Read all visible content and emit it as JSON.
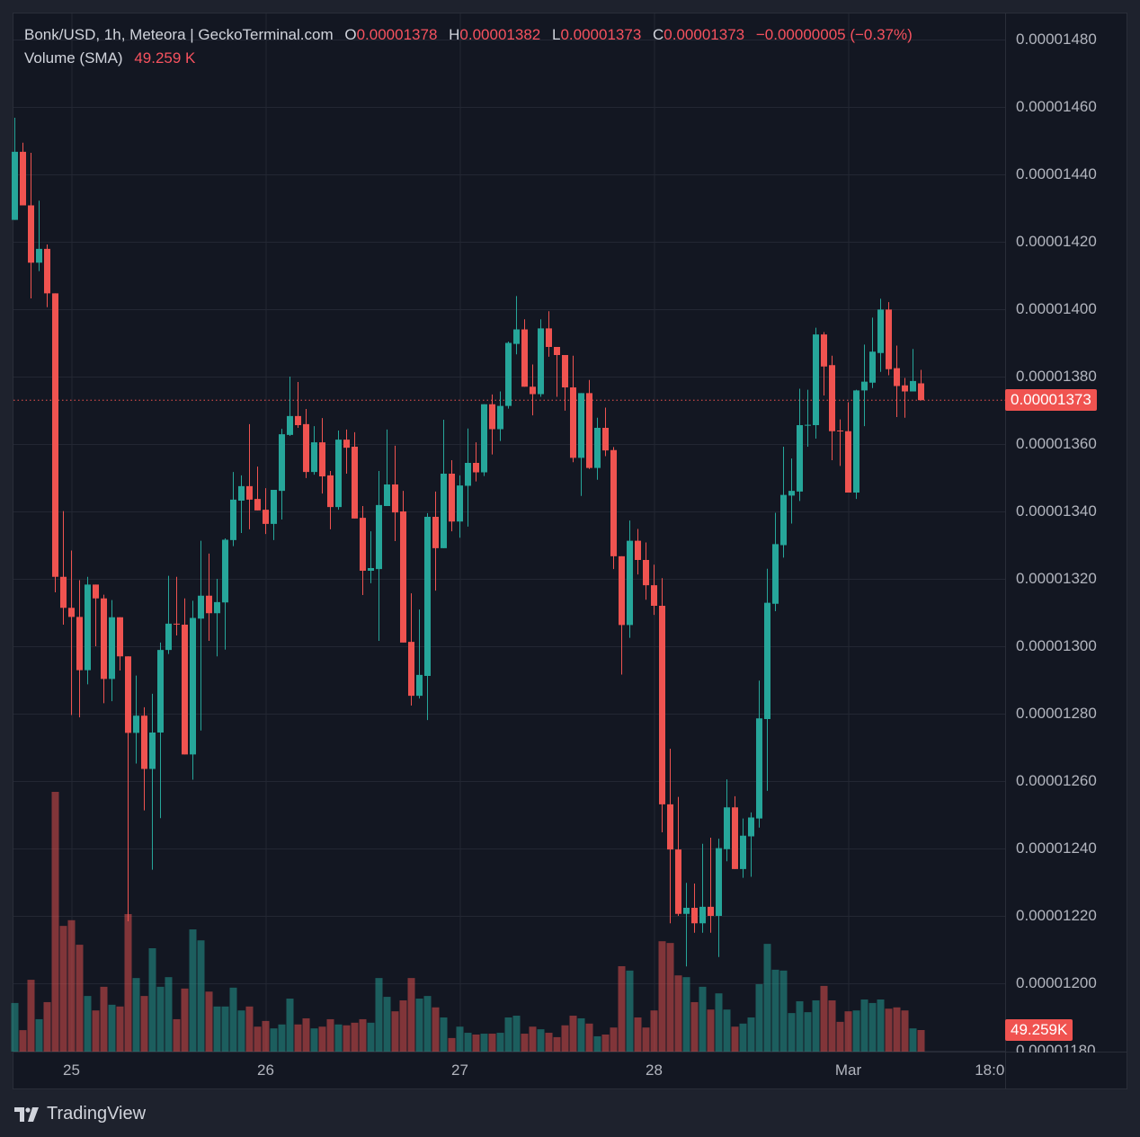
{
  "header": {
    "symbol_line": "Bonk/USD, 1h, Meteora | GeckoTerminal.com",
    "open_label": "O",
    "open_value": "0.00001378",
    "high_label": "H",
    "high_value": "0.00001382",
    "low_label": "L",
    "low_value": "0.00001373",
    "close_label": "C",
    "close_value": "0.00001373",
    "change": "−0.00000005 (−0.37%)",
    "volume_label": "Volume (SMA)",
    "volume_value": "49.259 K"
  },
  "last_price_label": "0.00001373",
  "last_volume_label": "49.259K",
  "branding": "TradingView",
  "colors": {
    "up": "#26a69a",
    "down": "#ef5350",
    "background": "#131722",
    "frame": "#1e222d",
    "grid": "#232733",
    "text": "#b2b5be"
  },
  "chart_data": {
    "type": "candlestick",
    "interval": "1h",
    "grid": true,
    "x_tick_labels": [
      "25",
      "26",
      "27",
      "28",
      "Mar",
      "18:00"
    ],
    "y_tick_labels": [
      "0.00001480",
      "0.00001460",
      "0.00001440",
      "0.00001420",
      "0.00001400",
      "0.00001380",
      "0.00001360",
      "0.00001340",
      "0.00001320",
      "0.00001300",
      "0.00001280",
      "0.00001260",
      "0.00001240",
      "0.00001220",
      "0.00001200",
      "0.00001180"
    ],
    "ylim": [
      1.18e-05,
      1.48e-05
    ],
    "last_price": 1.373e-05,
    "ohlc": [
      [
        1.4265e-05,
        1.4568e-05,
        1.4265e-05,
        1.4467e-05
      ],
      [
        1.4467e-05,
        1.4494e-05,
        1.4308e-05,
        1.4308e-05
      ],
      [
        1.4308e-05,
        1.4464e-05,
        1.4032e-05,
        1.4138e-05
      ],
      [
        1.4138e-05,
        1.4322e-05,
        1.4113e-05,
        1.4179e-05
      ],
      [
        1.4179e-05,
        1.4192e-05,
        1.4006e-05,
        1.4047e-05
      ],
      [
        1.4047e-05,
        1.4047e-05,
        1.316e-05,
        1.3206e-05
      ],
      [
        1.3206e-05,
        1.3401e-05,
        1.3064e-05,
        1.3114e-05
      ],
      [
        1.3114e-05,
        1.3284e-05,
        1.2796e-05,
        1.3087e-05
      ],
      [
        1.3087e-05,
        1.3196e-05,
        1.2789e-05,
        1.2929e-05
      ],
      [
        1.2929e-05,
        1.3206e-05,
        1.2887e-05,
        1.3183e-05
      ],
      [
        1.3183e-05,
        1.3183e-05,
        1.3e-05,
        1.3142e-05
      ],
      [
        1.3142e-05,
        1.3153e-05,
        1.2831e-05,
        1.2903e-05
      ],
      [
        1.2903e-05,
        1.3137e-05,
        1.2837e-05,
        1.3086e-05
      ],
      [
        1.3086e-05,
        1.3086e-05,
        1.2928e-05,
        1.297e-05
      ],
      [
        1.297e-05,
        1.297e-05,
        1.2184e-05,
        1.2743e-05
      ],
      [
        1.2743e-05,
        1.2913e-05,
        1.2652e-05,
        1.2794e-05
      ],
      [
        1.2794e-05,
        1.2819e-05,
        1.2513e-05,
        1.2636e-05
      ],
      [
        1.2636e-05,
        1.2859e-05,
        1.2337e-05,
        1.2744e-05
      ],
      [
        1.2744e-05,
        1.3011e-05,
        1.249e-05,
        1.2989e-05
      ],
      [
        1.2989e-05,
        1.3209e-05,
        1.2977e-05,
        1.3067e-05
      ],
      [
        1.3067e-05,
        1.3206e-05,
        1.3032e-05,
        1.3066e-05
      ],
      [
        1.3064e-05,
        1.3142e-05,
        1.2679e-05,
        1.2679e-05
      ],
      [
        1.2679e-05,
        1.3135e-05,
        1.2604e-05,
        1.3084e-05
      ],
      [
        1.3082e-05,
        1.3313e-05,
        1.275e-05,
        1.315e-05
      ],
      [
        1.315e-05,
        1.3275e-05,
        1.3016e-05,
        1.3098e-05
      ],
      [
        1.3098e-05,
        1.32e-05,
        1.297e-05,
        1.3131e-05
      ],
      [
        1.313e-05,
        1.332e-05,
        1.299e-05,
        1.3316e-05
      ],
      [
        1.3315e-05,
        1.3517e-05,
        1.3297e-05,
        1.3435e-05
      ],
      [
        1.3432e-05,
        1.3507e-05,
        1.3336e-05,
        1.3475e-05
      ],
      [
        1.3475e-05,
        1.3659e-05,
        1.3347e-05,
        1.3435e-05
      ],
      [
        1.3437e-05,
        1.3533e-05,
        1.3403e-05,
        1.3403e-05
      ],
      [
        1.3405e-05,
        1.3469e-05,
        1.3333e-05,
        1.3363e-05
      ],
      [
        1.3363e-05,
        1.3464e-05,
        1.3315e-05,
        1.3464e-05
      ],
      [
        1.3461e-05,
        1.3645e-05,
        1.3376e-05,
        1.3629e-05
      ],
      [
        1.3627e-05,
        1.38e-05,
        1.3624e-05,
        1.3683e-05
      ],
      [
        1.3683e-05,
        1.3784e-05,
        1.3648e-05,
        1.3656e-05
      ],
      [
        1.3659e-05,
        1.3704e-05,
        1.3499e-05,
        1.3517e-05
      ],
      [
        1.3517e-05,
        1.3653e-05,
        1.3509e-05,
        1.3605e-05
      ],
      [
        1.3605e-05,
        1.3677e-05,
        1.3453e-05,
        1.3504e-05
      ],
      [
        1.3507e-05,
        1.352e-05,
        1.3347e-05,
        1.3413e-05
      ],
      [
        1.3413e-05,
        1.364e-05,
        1.3405e-05,
        1.3613e-05
      ],
      [
        1.3613e-05,
        1.3643e-05,
        1.3512e-05,
        1.3589e-05
      ],
      [
        1.3592e-05,
        1.3635e-05,
        1.3379e-05,
        1.3379e-05
      ],
      [
        1.3381e-05,
        1.3416e-05,
        1.3152e-05,
        1.3224e-05
      ],
      [
        1.3224e-05,
        1.3341e-05,
        1.3187e-05,
        1.3232e-05
      ],
      [
        1.3229e-05,
        1.352e-05,
        1.3016e-05,
        1.3419e-05
      ],
      [
        1.3416e-05,
        1.3643e-05,
        1.3416e-05,
        1.348e-05
      ],
      [
        1.348e-05,
        1.3595e-05,
        1.3312e-05,
        1.3397e-05
      ],
      [
        1.34e-05,
        1.3461e-05,
        1.3011e-05,
        1.3011e-05
      ],
      [
        1.3013e-05,
        1.3157e-05,
        1.2824e-05,
        1.2853e-05
      ],
      [
        1.2853e-05,
        1.3109e-05,
        1.2845e-05,
        1.2915e-05
      ],
      [
        1.2912e-05,
        1.3395e-05,
        1.2781e-05,
        1.3384e-05
      ],
      [
        1.3384e-05,
        1.3459e-05,
        1.3165e-05,
        1.3291e-05
      ],
      [
        1.3291e-05,
        1.3672e-05,
        1.3291e-05,
        1.3512e-05
      ],
      [
        1.3512e-05,
        1.3552e-05,
        1.3341e-05,
        1.337e-05
      ],
      [
        1.337e-05,
        1.3507e-05,
        1.3322e-05,
        1.3477e-05
      ],
      [
        1.3476e-05,
        1.3646e-05,
        1.3355e-05,
        1.3544e-05
      ],
      [
        1.3544e-05,
        1.3605e-05,
        1.3489e-05,
        1.3516e-05
      ],
      [
        1.3516e-05,
        1.3718e-05,
        1.3505e-05,
        1.3718e-05
      ],
      [
        1.3718e-05,
        1.3747e-05,
        1.3569e-05,
        1.3644e-05
      ],
      [
        1.3644e-05,
        1.3756e-05,
        1.3609e-05,
        1.3713e-05
      ],
      [
        1.3713e-05,
        1.3904e-05,
        1.3705e-05,
        1.39e-05
      ],
      [
        1.3897e-05,
        1.4039e-05,
        1.3866e-05,
        1.394e-05
      ],
      [
        1.394e-05,
        1.397e-05,
        1.377e-05,
        1.377e-05
      ],
      [
        1.377e-05,
        1.3836e-05,
        1.3685e-05,
        1.3748e-05
      ],
      [
        1.3748e-05,
        1.397e-05,
        1.374e-05,
        1.3943e-05
      ],
      [
        1.3943e-05,
        1.3994e-05,
        1.3859e-05,
        1.3888e-05
      ],
      [
        1.3888e-05,
        1.3888e-05,
        1.374e-05,
        1.3864e-05
      ],
      [
        1.3864e-05,
        1.3864e-05,
        1.3699e-05,
        1.3768e-05
      ],
      [
        1.3768e-05,
        1.3862e-05,
        1.3546e-05,
        1.3559e-05
      ],
      [
        1.3559e-05,
        1.3751e-05,
        1.3446e-05,
        1.3751e-05
      ],
      [
        1.3751e-05,
        1.379e-05,
        1.3526e-05,
        1.3529e-05
      ],
      [
        1.3529e-05,
        1.3678e-05,
        1.3494e-05,
        1.3648e-05
      ],
      [
        1.3648e-05,
        1.3708e-05,
        1.3564e-05,
        1.3581e-05
      ],
      [
        1.3582e-05,
        1.3591e-05,
        1.3229e-05,
        1.3267e-05
      ],
      [
        1.3267e-05,
        1.3267e-05,
        1.2916e-05,
        1.3063e-05
      ],
      [
        1.3063e-05,
        1.3373e-05,
        1.3025e-05,
        1.3313e-05
      ],
      [
        1.3313e-05,
        1.3348e-05,
        1.3213e-05,
        1.3256e-05
      ],
      [
        1.3256e-05,
        1.3308e-05,
        1.3138e-05,
        1.3181e-05
      ],
      [
        1.3181e-05,
        1.3242e-05,
        1.3093e-05,
        1.312e-05
      ],
      [
        1.312e-05,
        1.3202e-05,
        1.2448e-05,
        1.2531e-05
      ],
      [
        1.2531e-05,
        1.2696e-05,
        1.2178e-05,
        1.2397e-05
      ],
      [
        1.2397e-05,
        1.2553e-05,
        1.22e-05,
        1.2206e-05
      ],
      [
        1.2206e-05,
        1.2298e-05,
        1.205e-05,
        1.2224e-05
      ],
      [
        1.2224e-05,
        1.2296e-05,
        1.215e-05,
        1.2178e-05
      ],
      [
        1.2178e-05,
        1.2414e-05,
        1.215e-05,
        1.2227e-05
      ],
      [
        1.2227e-05,
        1.2432e-05,
        1.215e-05,
        1.22e-05
      ],
      [
        1.22e-05,
        1.2429e-05,
        1.2078e-05,
        1.2401e-05
      ],
      [
        1.2398e-05,
        1.2605e-05,
        1.2362e-05,
        1.2522e-05
      ],
      [
        1.2522e-05,
        1.2555e-05,
        1.2339e-05,
        1.2339e-05
      ],
      [
        1.2339e-05,
        1.2489e-05,
        1.2313e-05,
        1.2438e-05
      ],
      [
        1.2436e-05,
        1.2507e-05,
        1.2316e-05,
        1.2492e-05
      ],
      [
        1.2489e-05,
        1.2898e-05,
        1.2462e-05,
        1.2786e-05
      ],
      [
        1.2784e-05,
        1.323e-05,
        1.2571e-05,
        1.3129e-05
      ],
      [
        1.3126e-05,
        1.3396e-05,
        1.3104e-05,
        1.3303e-05
      ],
      [
        1.33e-05,
        1.3592e-05,
        1.3263e-05,
        1.3449e-05
      ],
      [
        1.3447e-05,
        1.3557e-05,
        1.3364e-05,
        1.3461e-05
      ],
      [
        1.3459e-05,
        1.3764e-05,
        1.3431e-05,
        1.3656e-05
      ],
      [
        1.3657e-05,
        1.3761e-05,
        1.3592e-05,
        1.3657e-05
      ],
      [
        1.3656e-05,
        1.3945e-05,
        1.3616e-05,
        1.3925e-05
      ],
      [
        1.3925e-05,
        1.3932e-05,
        1.3744e-05,
        1.383e-05
      ],
      [
        1.3834e-05,
        1.3862e-05,
        1.3552e-05,
        1.3638e-05
      ],
      [
        1.364e-05,
        1.3673e-05,
        1.3535e-05,
        1.3639e-05
      ],
      [
        1.3638e-05,
        1.3724e-05,
        1.3456e-05,
        1.3456e-05
      ],
      [
        1.3456e-05,
        1.3761e-05,
        1.3437e-05,
        1.3759e-05
      ],
      [
        1.3759e-05,
        1.3895e-05,
        1.3653e-05,
        1.3785e-05
      ],
      [
        1.3782e-05,
        1.3975e-05,
        1.3766e-05,
        1.3874e-05
      ],
      [
        1.387e-05,
        1.4031e-05,
        1.3814e-05,
        1.3999e-05
      ],
      [
        1.3999e-05,
        1.4021e-05,
        1.3804e-05,
        1.3822e-05
      ],
      [
        1.3825e-05,
        1.3892e-05,
        1.368e-05,
        1.3772e-05
      ],
      [
        1.3774e-05,
        1.3796e-05,
        1.3678e-05,
        1.3756e-05
      ],
      [
        1.3756e-05,
        1.3882e-05,
        1.3756e-05,
        1.3787e-05
      ],
      [
        1.378e-05,
        1.382e-05,
        1.373e-05,
        1.373e-05
      ]
    ],
    "volume": [
      111000,
      49000,
      164000,
      74000,
      113000,
      593000,
      287000,
      300000,
      244000,
      127000,
      94000,
      148000,
      107000,
      103000,
      314000,
      168000,
      127000,
      236000,
      148000,
      170000,
      74000,
      144000,
      279000,
      254000,
      137000,
      103000,
      103000,
      146000,
      94000,
      103000,
      57000,
      70000,
      53000,
      62000,
      121000,
      62000,
      76000,
      53000,
      57000,
      74000,
      62000,
      60000,
      66000,
      74000,
      66000,
      168000,
      125000,
      92000,
      117000,
      168000,
      121000,
      127000,
      101000,
      78000,
      31000,
      57000,
      43000,
      39000,
      41000,
      41000,
      43000,
      78000,
      82000,
      41000,
      57000,
      51000,
      43000,
      33000,
      60000,
      82000,
      76000,
      64000,
      35000,
      39000,
      55000,
      195000,
      185000,
      78000,
      55000,
      94000,
      252000,
      248000,
      174000,
      170000,
      113000,
      148000,
      96000,
      133000,
      96000,
      57000,
      64000,
      78000,
      154000,
      246000,
      187000,
      185000,
      88000,
      115000,
      90000,
      117000,
      150000,
      117000,
      68000,
      92000,
      94000,
      119000,
      111000,
      119000,
      98000,
      101000,
      94000,
      53000,
      49259
    ]
  }
}
